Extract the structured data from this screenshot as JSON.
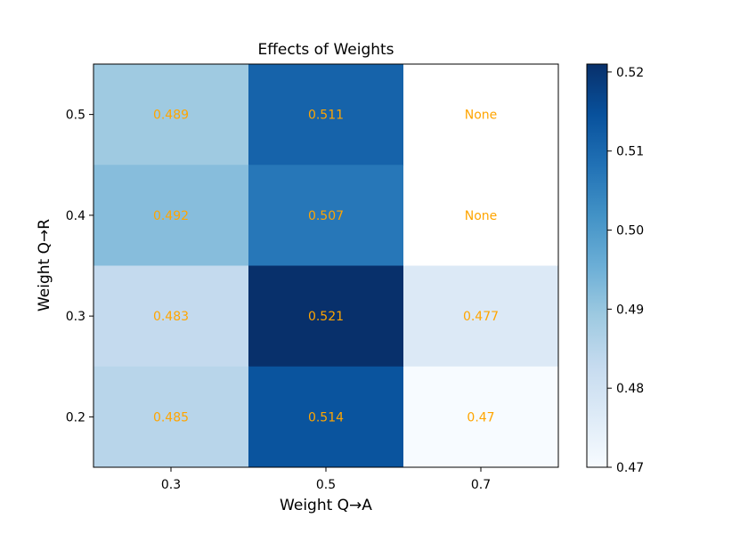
{
  "chart_data": {
    "type": "heatmap",
    "title": "Effects of Weights",
    "xlabel": "Weight Q→A",
    "ylabel": "Weight Q→R",
    "x_categories": [
      "0.3",
      "0.5",
      "0.7"
    ],
    "y_categories": [
      "0.5",
      "0.4",
      "0.3",
      "0.2"
    ],
    "values": [
      [
        0.489,
        0.511,
        null
      ],
      [
        0.492,
        0.507,
        null
      ],
      [
        0.483,
        0.521,
        0.477
      ],
      [
        0.485,
        0.514,
        0.47
      ]
    ],
    "cell_labels": [
      [
        "0.489",
        "0.511",
        "None"
      ],
      [
        "0.492",
        "0.507",
        "None"
      ],
      [
        "0.483",
        "0.521",
        "0.477"
      ],
      [
        "0.485",
        "0.514",
        "0.47"
      ]
    ],
    "colormap": "Blues",
    "vmin": 0.47,
    "vmax": 0.521,
    "colorbar_ticks": [
      "0.47",
      "0.48",
      "0.49",
      "0.50",
      "0.51",
      "0.52"
    ],
    "colorbar_tick_values": [
      0.47,
      0.48,
      0.49,
      0.5,
      0.51,
      0.52
    ],
    "label_color": "#ffa500",
    "missing_color": "#ffffff",
    "grid": false,
    "legend": "colorbar-right"
  }
}
